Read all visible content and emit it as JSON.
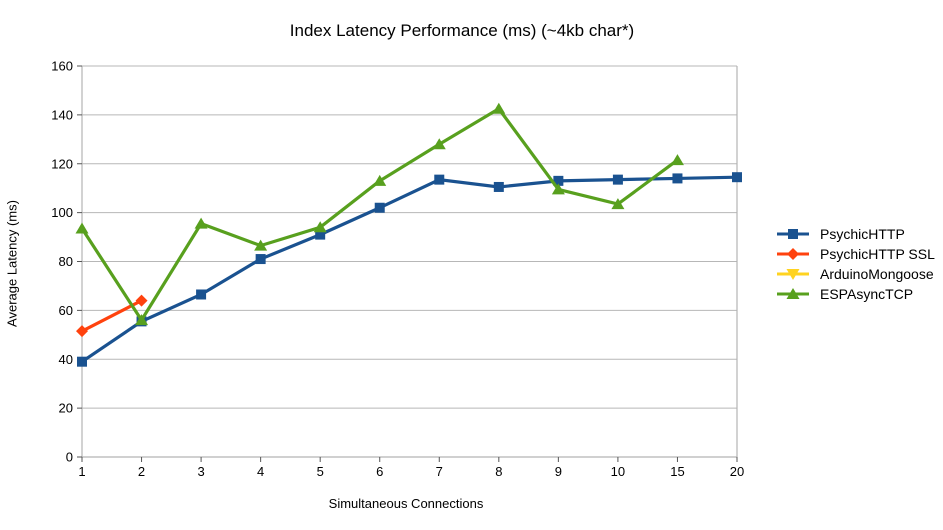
{
  "chart_data": {
    "type": "line",
    "title": "Index Latency Performance (ms) (~4kb char*)",
    "xlabel": "Simultaneous Connections",
    "ylabel": "Average Latency (ms)",
    "ylim": [
      0,
      160
    ],
    "yticks": [
      0,
      20,
      40,
      60,
      80,
      100,
      120,
      140,
      160
    ],
    "categories": [
      "1",
      "2",
      "3",
      "4",
      "5",
      "6",
      "7",
      "8",
      "9",
      "10",
      "15",
      "20"
    ],
    "grid": "horizontal",
    "legend_position": "right",
    "series": [
      {
        "name": "PsychicHTTP",
        "color": "#1A5290",
        "marker": "square",
        "values": [
          39,
          55.5,
          66.5,
          81,
          91,
          102,
          113.5,
          110.5,
          113,
          113.5,
          114,
          114.5
        ]
      },
      {
        "name": "PsychicHTTP SSL",
        "color": "#FF420E",
        "marker": "diamond",
        "values": [
          51.5,
          64,
          null,
          null,
          null,
          null,
          null,
          null,
          null,
          null,
          null,
          null
        ]
      },
      {
        "name": "ArduinoMongoose",
        "color": "#FFD320",
        "marker": "triangle-down",
        "values": [
          null,
          null,
          null,
          null,
          null,
          null,
          null,
          null,
          null,
          null,
          null,
          null
        ]
      },
      {
        "name": "ESPAsyncTCP",
        "color": "#58A01E",
        "marker": "triangle-up",
        "values": [
          93.5,
          56,
          95.5,
          86.5,
          94,
          113,
          128,
          142.5,
          109.5,
          103.5,
          121.5,
          null
        ]
      }
    ],
    "style": {
      "grid_color": "#b7b7b7",
      "axis_color": "#b3b3b3",
      "tick_color": "#555555",
      "text_color": "#000000"
    }
  }
}
